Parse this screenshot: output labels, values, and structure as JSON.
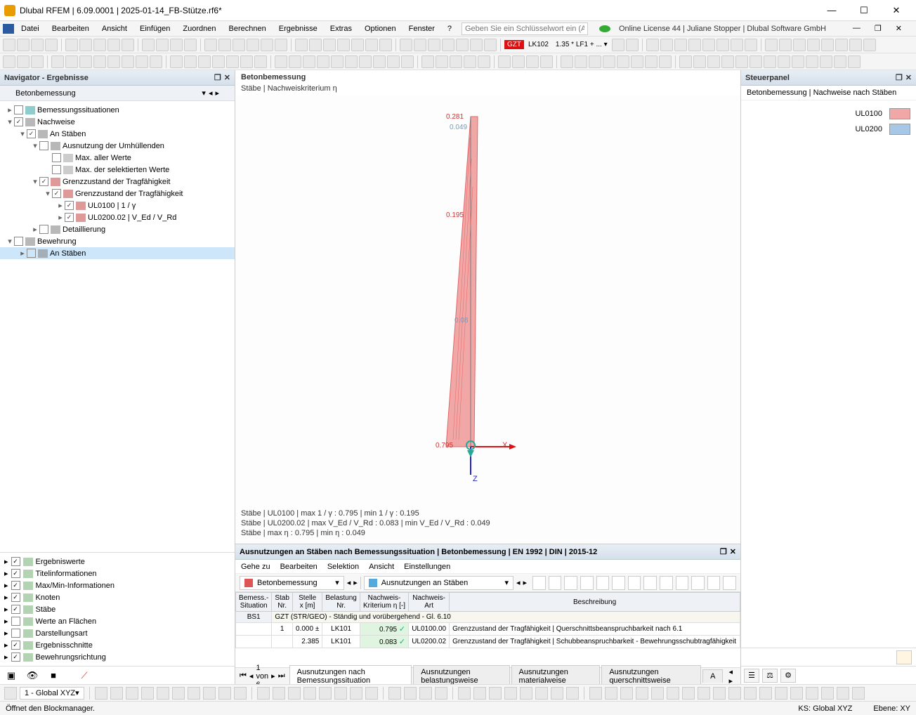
{
  "window": {
    "title": "Dlubal RFEM | 6.09.0001 | 2025-01-14_FB-Stütze.rf6*",
    "min": "—",
    "max": "☐",
    "close": "✕"
  },
  "menus": [
    "Datei",
    "Bearbeiten",
    "Ansicht",
    "Einfügen",
    "Zuordnen",
    "Berechnen",
    "Ergebnisse",
    "Extras",
    "Optionen",
    "Fenster",
    "?"
  ],
  "search_placeholder": "Geben Sie ein Schlüsselwort ein (Alt...",
  "license": "Online License 44 | Juliane Stopper | Dlubal Software GmbH",
  "toolbar_tags": {
    "gzt": "GZT",
    "lk": "LK102",
    "combo": "1.35 * LF1 + ... ▾"
  },
  "navigator": {
    "title": "Navigator - Ergebnisse",
    "sub": "Betonbemessung",
    "tree": [
      {
        "indent": 0,
        "tw": "▸",
        "cb": " ",
        "ic": "#4aa",
        "label": "Bemessungssituationen"
      },
      {
        "indent": 0,
        "tw": "▾",
        "cb": "✓",
        "ic": "#888",
        "label": "Nachweise"
      },
      {
        "indent": 1,
        "tw": "▾",
        "cb": "✓",
        "ic": "#888",
        "label": "An Stäben"
      },
      {
        "indent": 2,
        "tw": "▾",
        "cb": " ",
        "ic": "#888",
        "label": "Ausnutzung der Umhüllenden"
      },
      {
        "indent": 3,
        "tw": "",
        "cb": " ",
        "ic": "#aaa",
        "label": "Max. aller Werte"
      },
      {
        "indent": 3,
        "tw": "",
        "cb": " ",
        "ic": "#aaa",
        "label": "Max. der selektierten Werte"
      },
      {
        "indent": 2,
        "tw": "▾",
        "cb": "✓",
        "ic": "#c55",
        "label": "Grenzzustand der Tragfähigkeit"
      },
      {
        "indent": 3,
        "tw": "▾",
        "cb": "✓",
        "ic": "#c55",
        "label": "Grenzzustand der Tragfähigkeit"
      },
      {
        "indent": 4,
        "tw": "▸",
        "cb": "✓",
        "ic": "#c55",
        "label": "UL0100 | 1 / γ"
      },
      {
        "indent": 4,
        "tw": "▸",
        "cb": "✓",
        "ic": "#c55",
        "label": "UL0200.02 | V_Ed / V_Rd"
      },
      {
        "indent": 2,
        "tw": "▸",
        "cb": " ",
        "ic": "#888",
        "label": "Detaillierung"
      },
      {
        "indent": 0,
        "tw": "▾",
        "cb": " ",
        "ic": "#888",
        "label": "Bewehrung"
      },
      {
        "indent": 1,
        "tw": "▸",
        "cb": " ",
        "ic": "#888",
        "label": "An Stäben",
        "sel": true
      }
    ],
    "options": [
      {
        "cb": "✓",
        "label": "Ergebniswerte"
      },
      {
        "cb": "✓",
        "label": "Titelinformationen"
      },
      {
        "cb": "✓",
        "label": "Max/Min-Informationen"
      },
      {
        "cb": "✓",
        "label": "Knoten"
      },
      {
        "cb": "✓",
        "label": "Stäbe"
      },
      {
        "cb": " ",
        "label": "Werte an Flächen"
      },
      {
        "cb": " ",
        "label": "Darstellungsart"
      },
      {
        "cb": "✓",
        "label": "Ergebnisschnitte"
      },
      {
        "cb": "✓",
        "label": "Bewehrungsrichtung"
      }
    ]
  },
  "view": {
    "title": "Betonbemessung",
    "subtitle": "Stäbe | Nachweiskriterium η",
    "annotations": {
      "top1": "0.281",
      "top2": "0.049",
      "mid": "0.195",
      "low": "0.08",
      "bot": "0.795",
      "axis_x": "X",
      "axis_z": "Z"
    },
    "info": [
      "Stäbe | UL0100 | max 1 / γ : 0.795 | min 1 / γ : 0.195",
      "Stäbe | UL0200.02 | max V_Ed / V_Rd : 0.083 | min V_Ed / V_Rd : 0.049",
      "Stäbe | max η : 0.795 | min η : 0.049"
    ],
    "colors": {
      "fill": "#f2a7a7",
      "stroke": "#e06666",
      "axis_x": "#d11",
      "axis_z": "#22c",
      "ground": "#2a9"
    }
  },
  "steuer": {
    "title": "Steuerpanel",
    "sub": "Betonbemessung | Nachweise nach Stäben",
    "legend": [
      {
        "label": "UL0100",
        "color": "#f2a7a7"
      },
      {
        "label": "UL0200",
        "color": "#a7c7e7"
      }
    ]
  },
  "table": {
    "title": "Ausnutzungen an Stäben nach Bemessungssituation | Betonbemessung | EN 1992 | DIN | 2015-12",
    "menus": [
      "Gehe zu",
      "Bearbeiten",
      "Selektion",
      "Ansicht",
      "Einstellungen"
    ],
    "drop1": "Betonbemessung",
    "drop2": "Ausnutzungen an Stäben",
    "headers": [
      "Bemess.-\nSituation",
      "Stab\nNr.",
      "Stelle\nx [m]",
      "Belastung\nNr.",
      "Nachweis-\nKriterium η [-]",
      "Nachweis-\nArt",
      "Beschreibung"
    ],
    "grouprow": "GZT (STR/GEO) - Ständig und vorübergehend - Gl. 6.10",
    "groupkey": "BS1",
    "rows": [
      {
        "stab": "1",
        "x": "0.000",
        "flag": "±",
        "lk": "LK101",
        "eta": "0.795",
        "ok": "✓",
        "art": "UL0100.00",
        "desc": "Grenzzustand der Tragfähigkeit | Querschnittsbeanspruchbarkeit nach 6.1"
      },
      {
        "stab": "",
        "x": "2.385",
        "flag": "",
        "lk": "LK101",
        "eta": "0.083",
        "ok": "✓",
        "art": "UL0200.02",
        "desc": "Grenzzustand der Tragfähigkeit | Schubbeanspruchbarkeit - Bewehrungsschubtragfähigkeit"
      }
    ],
    "pager": "1 von 6",
    "tabs": [
      "Ausnutzungen nach Bemessungssituation",
      "Ausnutzungen belastungsweise",
      "Ausnutzungen materialweise",
      "Ausnutzungen querschnittsweise",
      "A"
    ]
  },
  "bottombar_drop": "1 - Global XYZ",
  "status": {
    "left": "Öffnet den Blockmanager.",
    "ks": "KS: Global XYZ",
    "ebene": "Ebene: XY"
  }
}
